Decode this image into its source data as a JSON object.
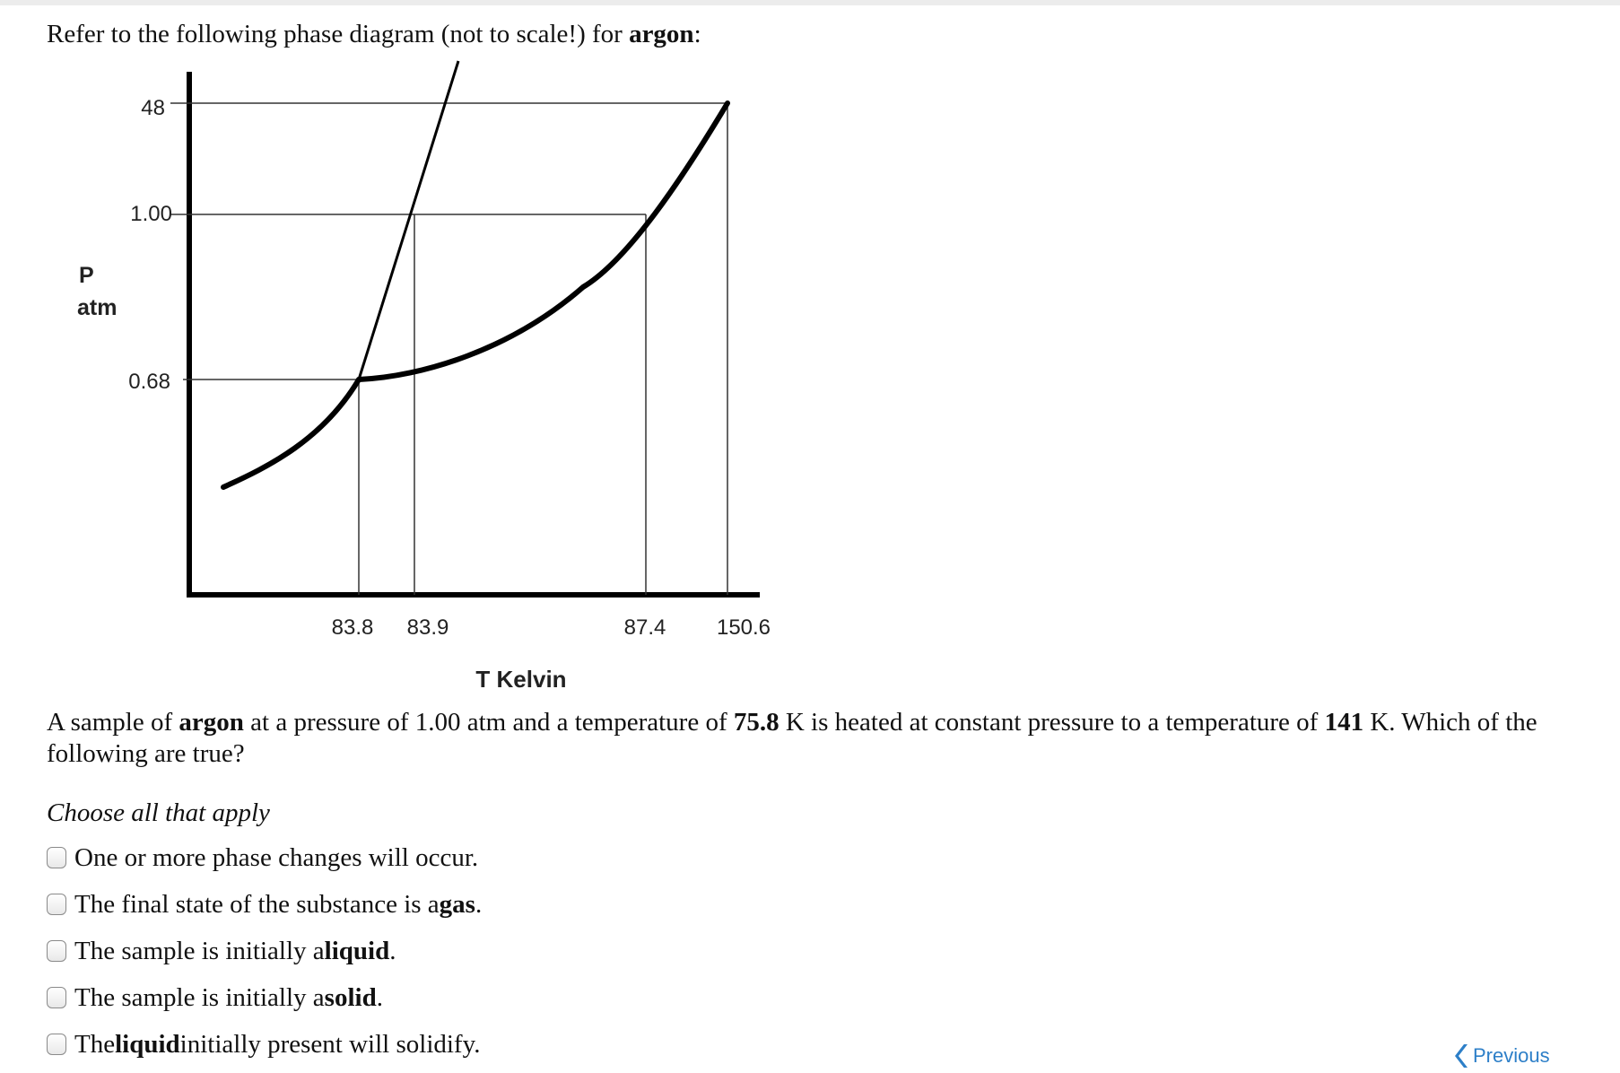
{
  "intro": {
    "text": "Refer to the following phase diagram (not to scale!) for ",
    "substance": "argon",
    "end": ":"
  },
  "chart_data": {
    "type": "line",
    "title": "",
    "ylabel_line1": "P",
    "ylabel_line2": "atm",
    "xlabel": "T Kelvin",
    "x_ticks": [
      "83.8",
      "83.9",
      "87.4",
      "150.6"
    ],
    "y_ticks": [
      "48",
      "1.00",
      "0.68"
    ],
    "points": {
      "triple_point": {
        "T": "83.8",
        "P": "0.68"
      },
      "normal_melting_point": {
        "T": "83.9",
        "P": "1.00"
      },
      "normal_boiling_point": {
        "T": "87.4",
        "P": "1.00"
      },
      "critical_point": {
        "T": "150.6",
        "P": "48"
      }
    },
    "curves": [
      "sublimation",
      "melting",
      "vaporization"
    ],
    "line_color": "#000000",
    "guide_color": "#333333"
  },
  "question": {
    "p1": "A sample of ",
    "substance": "argon",
    "p2": " at a pressure of 1.00 atm and a temperature of ",
    "t1": "75.8",
    "p3": " K is heated at constant pressure to a temperature of ",
    "t2": "141",
    "p4": " K. Which of the following are true?"
  },
  "choose_label": "Choose all that apply",
  "options": [
    {
      "pre": "One or more phase changes will occur.",
      "bold": "",
      "post": ""
    },
    {
      "pre": "The final state of the substance is a ",
      "bold": "gas",
      "post": "."
    },
    {
      "pre": "The sample is initially a ",
      "bold": "liquid",
      "post": "."
    },
    {
      "pre": "The sample is initially a ",
      "bold": "solid",
      "post": "."
    },
    {
      "pre": "The ",
      "bold": "liquid",
      "post": " initially present will solidify."
    }
  ],
  "nav": {
    "previous_label": "Previous",
    "accent": "#2d7fc8"
  }
}
